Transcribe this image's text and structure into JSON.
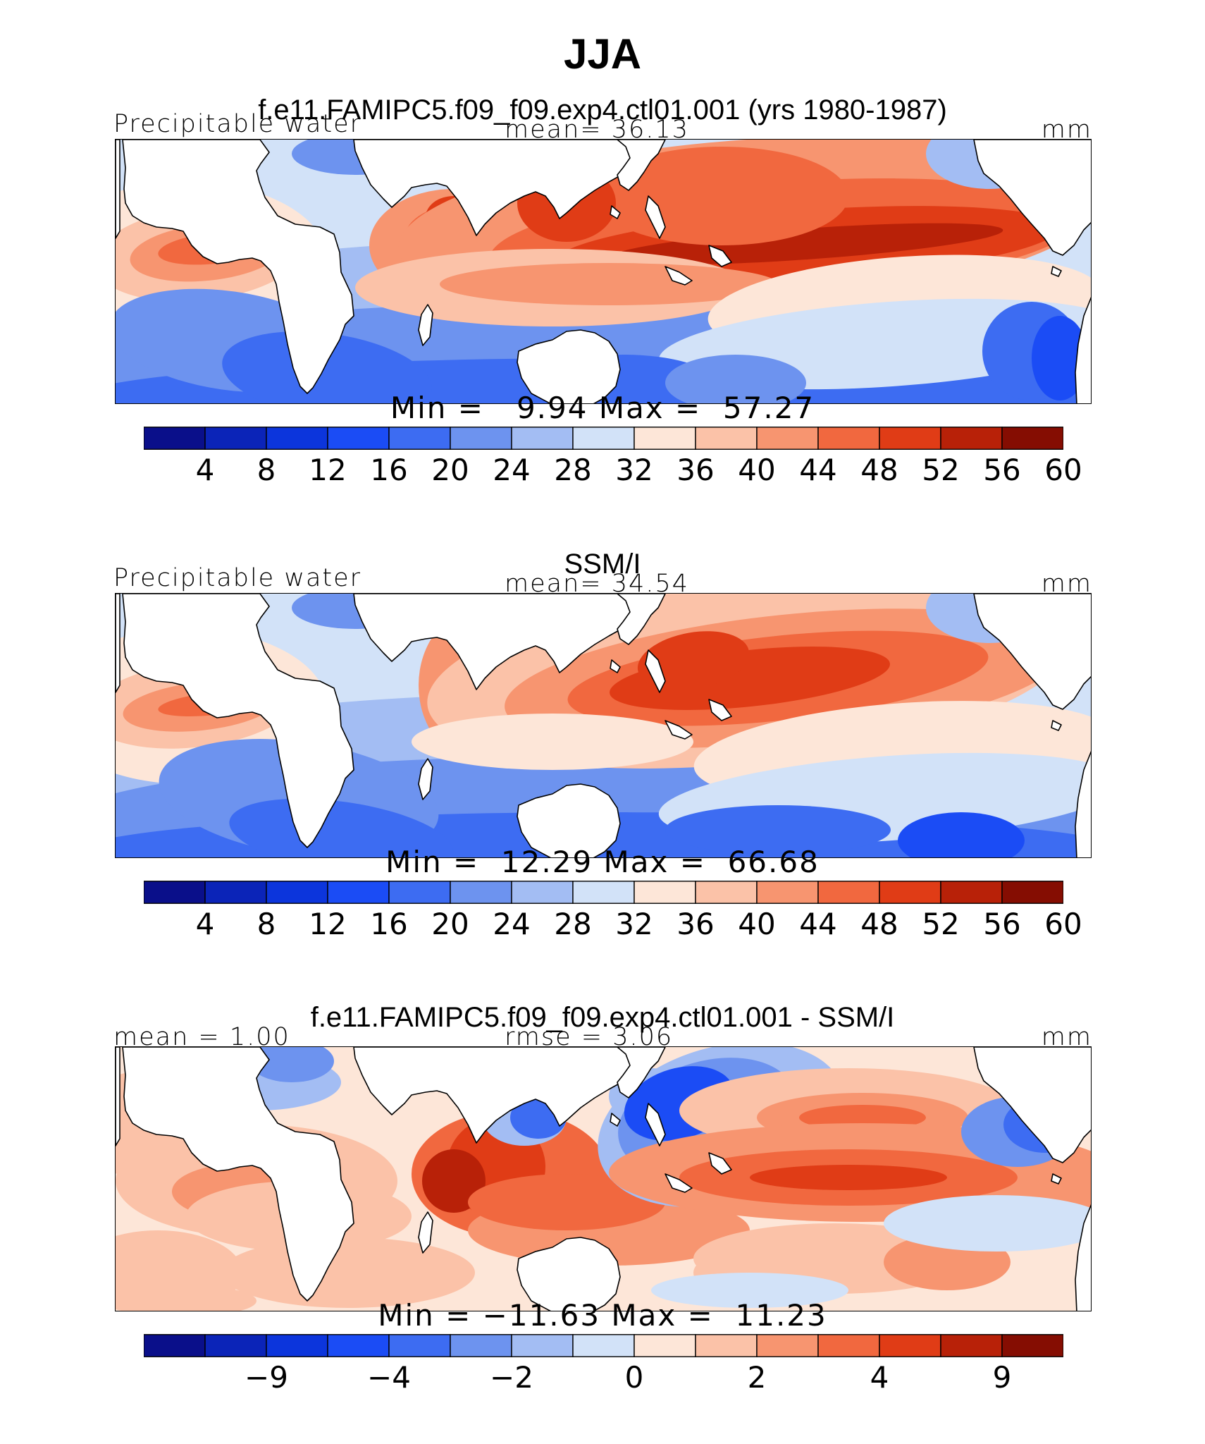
{
  "figure": {
    "title": "JJA"
  },
  "palette": [
    "#0a0f8a",
    "#0b24b8",
    "#0c35dc",
    "#1b4cf5",
    "#3d6cf2",
    "#6d93ef",
    "#a3bdf3",
    "#d2e2f8",
    "#fde6d8",
    "#fbc2a8",
    "#f79570",
    "#f1683f",
    "#e03c16",
    "#b82108",
    "#850d02"
  ],
  "panels": [
    {
      "title": "f.e11.FAMIPC5.f09_f09.exp4.ctl01.001 (yrs 1980-1987)",
      "left_label": "Precipitable water",
      "center_label": "mean=  36.13",
      "right_label": "mm",
      "stats": "Min =   9.94 Max =  57.27",
      "ticks": [
        "4",
        "8",
        "12",
        "16",
        "20",
        "24",
        "28",
        "32",
        "36",
        "40",
        "44",
        "48",
        "52",
        "56",
        "60"
      ],
      "tick_slots": [
        1,
        2,
        3,
        4,
        5,
        6,
        7,
        8,
        9,
        10,
        11,
        12,
        13,
        14,
        15
      ],
      "field": "model"
    },
    {
      "title": "SSM/I",
      "left_label": "Precipitable water",
      "center_label": "mean=  34.54",
      "right_label": "mm",
      "stats": "Min =  12.29 Max =  66.68",
      "ticks": [
        "4",
        "8",
        "12",
        "16",
        "20",
        "24",
        "28",
        "32",
        "36",
        "40",
        "44",
        "48",
        "52",
        "56",
        "60"
      ],
      "tick_slots": [
        1,
        2,
        3,
        4,
        5,
        6,
        7,
        8,
        9,
        10,
        11,
        12,
        13,
        14,
        15
      ],
      "field": "obs"
    },
    {
      "title": "f.e11.FAMIPC5.f09_f09.exp4.ctl01.001 - SSM/I",
      "left_label": "mean =   1.00",
      "center_label": "rmse =   3.06",
      "right_label": "mm",
      "stats": "Min = −11.63 Max =  11.23",
      "ticks": [
        "−9",
        "−4",
        "−2",
        "0",
        "2",
        "4",
        "9"
      ],
      "tick_slots": [
        2,
        4,
        6,
        8,
        10,
        12,
        14
      ],
      "field": "diff"
    }
  ]
}
